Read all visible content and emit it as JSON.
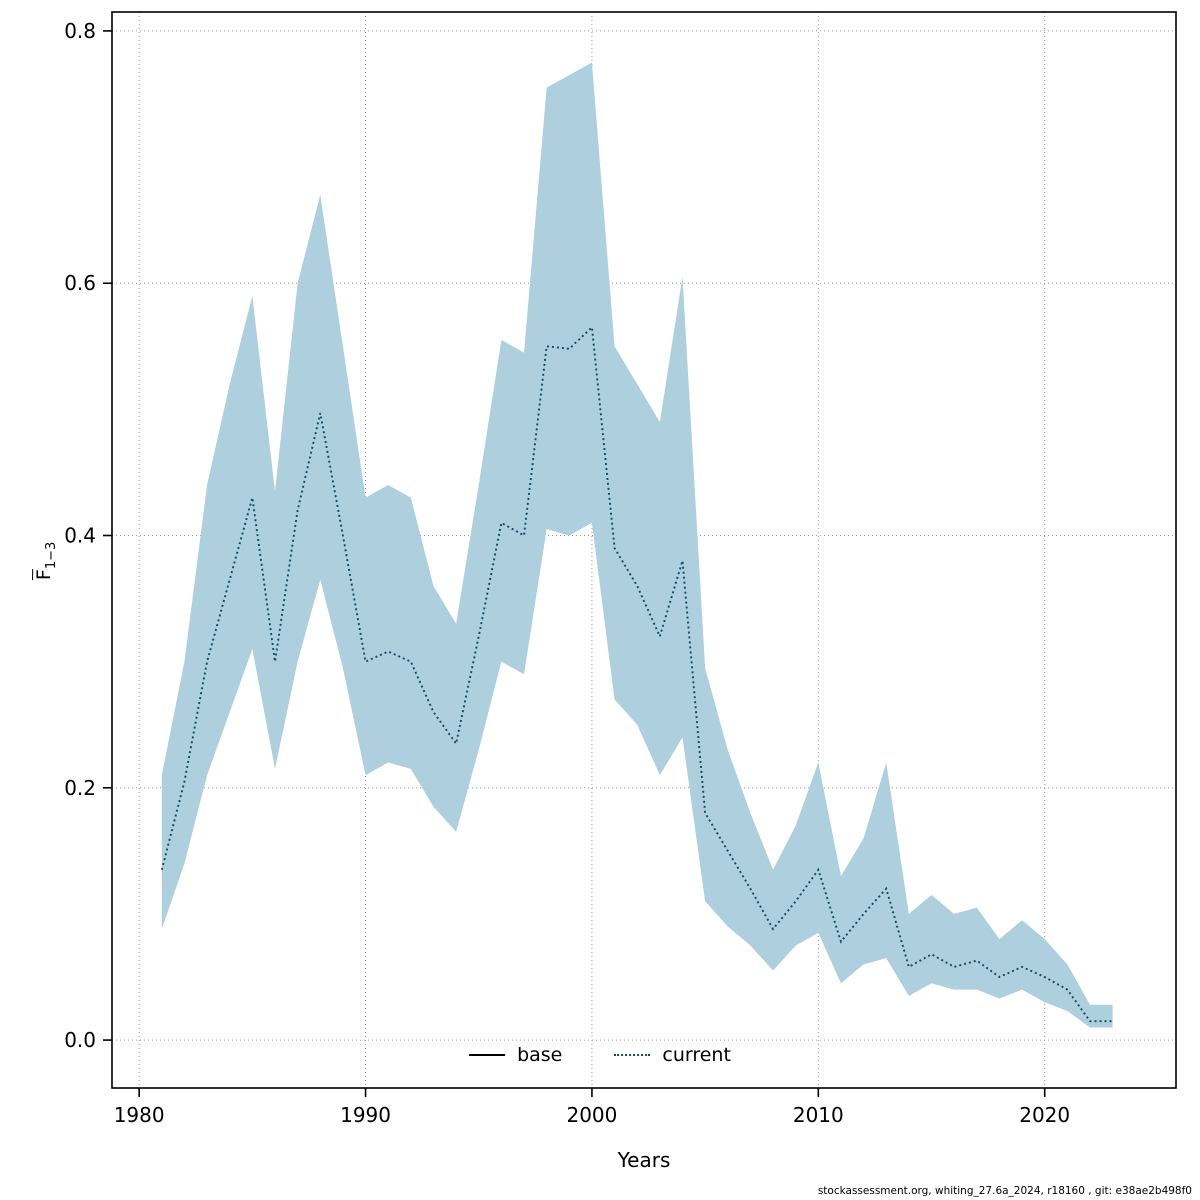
{
  "chart_data": {
    "type": "line",
    "title": "",
    "xlabel": "Years",
    "ylabel_main": "F",
    "ylabel_sub": "1−3",
    "x_ticks": [
      1980,
      1990,
      2000,
      2010,
      2020
    ],
    "y_ticks": [
      "0.0",
      "0.2",
      "0.4",
      "0.6",
      "0.8"
    ],
    "xlim": [
      1978.8,
      2025.8
    ],
    "ylim": [
      -0.038,
      0.815
    ],
    "grid": true,
    "legend_position": "bottom-center-inside",
    "colors": {
      "band": "#aecfde",
      "line": "#134a63",
      "base_line": "#000000",
      "grid": "#999999",
      "frame": "#000000"
    },
    "years": [
      1981,
      1982,
      1983,
      1984,
      1985,
      1986,
      1987,
      1988,
      1989,
      1990,
      1991,
      1992,
      1993,
      1994,
      1995,
      1996,
      1997,
      1998,
      1999,
      2000,
      2001,
      2002,
      2003,
      2004,
      2005,
      2006,
      2007,
      2008,
      2009,
      2010,
      2011,
      2012,
      2013,
      2014,
      2015,
      2016,
      2017,
      2018,
      2019,
      2020,
      2021,
      2022,
      2023
    ],
    "series": [
      {
        "name": "base",
        "line_style": "solid",
        "color": "#000000"
      },
      {
        "name": "current",
        "line_style": "dotted",
        "color": "#134a63",
        "values": [
          0.135,
          0.205,
          0.3,
          0.365,
          0.43,
          0.3,
          0.42,
          0.497,
          0.4,
          0.3,
          0.308,
          0.3,
          0.26,
          0.235,
          0.32,
          0.41,
          0.4,
          0.55,
          0.548,
          0.565,
          0.39,
          0.36,
          0.32,
          0.38,
          0.18,
          0.15,
          0.12,
          0.088,
          0.11,
          0.135,
          0.078,
          0.1,
          0.12,
          0.058,
          0.068,
          0.058,
          0.063,
          0.05,
          0.058,
          0.05,
          0.04,
          0.015,
          0.015
        ]
      }
    ],
    "band": {
      "upper": [
        0.21,
        0.3,
        0.44,
        0.52,
        0.59,
        0.435,
        0.6,
        0.67,
        0.55,
        0.43,
        0.44,
        0.43,
        0.36,
        0.33,
        0.44,
        0.555,
        0.545,
        0.755,
        0.765,
        0.775,
        0.55,
        0.52,
        0.49,
        0.605,
        0.295,
        0.23,
        0.18,
        0.135,
        0.17,
        0.22,
        0.13,
        0.16,
        0.22,
        0.1,
        0.115,
        0.1,
        0.105,
        0.08,
        0.095,
        0.08,
        0.06,
        0.028,
        0.028
      ],
      "lower": [
        0.088,
        0.14,
        0.21,
        0.26,
        0.31,
        0.215,
        0.3,
        0.365,
        0.295,
        0.21,
        0.22,
        0.215,
        0.185,
        0.165,
        0.23,
        0.3,
        0.29,
        0.405,
        0.4,
        0.41,
        0.27,
        0.25,
        0.21,
        0.24,
        0.11,
        0.09,
        0.075,
        0.055,
        0.075,
        0.085,
        0.045,
        0.06,
        0.065,
        0.035,
        0.045,
        0.04,
        0.04,
        0.033,
        0.04,
        0.03,
        0.023,
        0.01,
        0.01
      ]
    }
  },
  "legend": {
    "items": [
      {
        "label": "base"
      },
      {
        "label": "current"
      }
    ]
  },
  "footer": {
    "text": "stockassessment.org, whiting_27.6a_2024, r18160 , git: e38ae2b498f0"
  }
}
